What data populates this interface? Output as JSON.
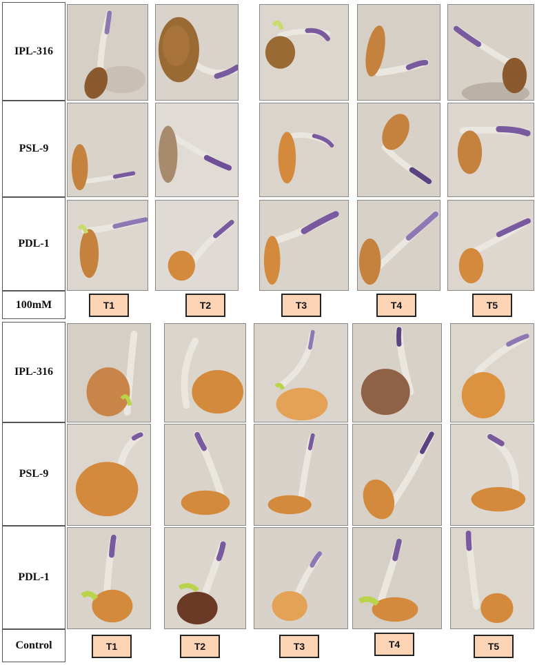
{
  "top_panel": {
    "rows": [
      {
        "label": "IPL-316"
      },
      {
        "label": "PSL-9"
      },
      {
        "label": "PDL-1"
      }
    ],
    "footer_label": "100mM",
    "treatments": [
      "T1",
      "T2",
      "T3",
      "T4",
      "T5"
    ]
  },
  "bottom_panel": {
    "rows": [
      {
        "label": "IPL-316"
      },
      {
        "label": "PSL-9"
      },
      {
        "label": "PDL-1"
      }
    ],
    "footer_label": "Control",
    "treatments": [
      "T1",
      "T2",
      "T3",
      "T4",
      "T5"
    ]
  },
  "colors": {
    "seed_dark": "#8a5a2e",
    "seed_orange": "#d48a3c",
    "seed_light": "#e3a255",
    "root_white": "#eae6e0",
    "root_purple": "#7a5a9e",
    "shoot_green": "#b9d34a",
    "background_paper": "#d9d2c8",
    "badge_fill": "#fbd3b5"
  }
}
